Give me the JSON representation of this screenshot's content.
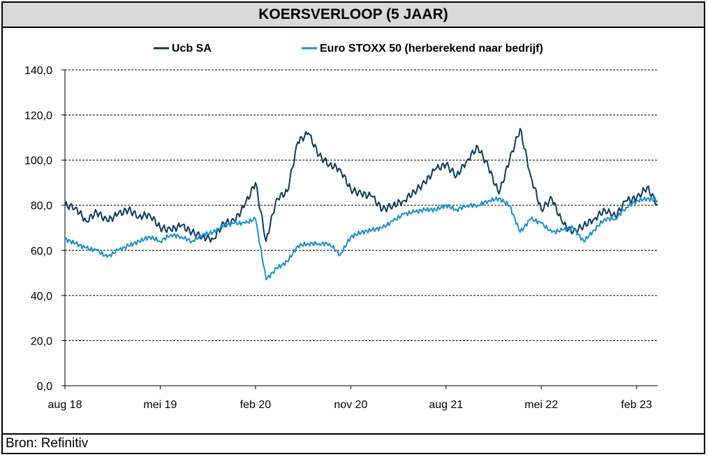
{
  "title": "KOERSVERLOOP (5 JAAR)",
  "source": "Bron: Refinitiv",
  "colors": {
    "ucb": "#0d3a5c",
    "stoxx": "#1e90cc",
    "grid": "#000000"
  },
  "chart_data": {
    "type": "line",
    "title": "KOERSVERLOOP (5 JAAR)",
    "x_range": [
      "aug 18",
      "mrt 23"
    ],
    "xtick_labels": [
      "aug 18",
      "mei 19",
      "feb 20",
      "nov 20",
      "aug 21",
      "mei 22",
      "feb 23"
    ],
    "ylim": [
      0,
      140
    ],
    "yticks": [
      0,
      20,
      40,
      60,
      80,
      100,
      120,
      140
    ],
    "ytick_labels": [
      "0,0",
      "20,0",
      "40,0",
      "60,0",
      "80,0",
      "100,0",
      "120,0",
      "140,0"
    ],
    "grid": "horizontal dashed",
    "legend_position": "top",
    "series": [
      {
        "name": "Ucb SA",
        "color": "#0d3a5c",
        "points": [
          [
            "aug 18",
            80
          ],
          [
            "sep 18",
            79
          ],
          [
            "okt 18",
            73
          ],
          [
            "nov 18",
            77
          ],
          [
            "dec 18",
            73
          ],
          [
            "jan 19",
            76
          ],
          [
            "feb 19",
            78
          ],
          [
            "mrt 19",
            75
          ],
          [
            "apr 19",
            76
          ],
          [
            "mei 19",
            70
          ],
          [
            "jun 19",
            69
          ],
          [
            "jul 19",
            71
          ],
          [
            "aug 19",
            68
          ],
          [
            "sep 19",
            66
          ],
          [
            "okt 19",
            65
          ],
          [
            "nov 19",
            72
          ],
          [
            "dec 19",
            73
          ],
          [
            "jan 20",
            80
          ],
          [
            "feb 20",
            90
          ],
          [
            "mrt 20",
            64
          ],
          [
            "apr 20",
            83
          ],
          [
            "mei 20",
            86
          ],
          [
            "jun 20",
            108
          ],
          [
            "jul 20",
            112
          ],
          [
            "aug 20",
            102
          ],
          [
            "sep 20",
            98
          ],
          [
            "okt 20",
            96
          ],
          [
            "nov 20",
            87
          ],
          [
            "dec 20",
            85
          ],
          [
            "jan 21",
            84
          ],
          [
            "feb 21",
            78
          ],
          [
            "mrt 21",
            80
          ],
          [
            "apr 21",
            82
          ],
          [
            "mei 21",
            86
          ],
          [
            "jun 21",
            90
          ],
          [
            "jul 21",
            96
          ],
          [
            "aug 21",
            98
          ],
          [
            "sep 21",
            93
          ],
          [
            "okt 21",
            100
          ],
          [
            "nov 21",
            106
          ],
          [
            "dec 21",
            97
          ],
          [
            "jan 22",
            85
          ],
          [
            "feb 22",
            100
          ],
          [
            "mrt 22",
            114
          ],
          [
            "apr 22",
            93
          ],
          [
            "mei 22",
            78
          ],
          [
            "jun 22",
            83
          ],
          [
            "jul 22",
            72
          ],
          [
            "aug 22",
            68
          ],
          [
            "sep 22",
            71
          ],
          [
            "okt 22",
            74
          ],
          [
            "nov 22",
            78
          ],
          [
            "dec 22",
            75
          ],
          [
            "jan 23",
            82
          ],
          [
            "feb 23",
            83
          ],
          [
            "mrt 23",
            88
          ],
          [
            "mrt 23 eind",
            80
          ]
        ]
      },
      {
        "name": "Euro STOXX 50 (herberekend naar bedrijf)",
        "color": "#1e90cc",
        "points": [
          [
            "aug 18",
            65
          ],
          [
            "sep 18",
            63
          ],
          [
            "okt 18",
            61
          ],
          [
            "nov 18",
            60
          ],
          [
            "dec 18",
            57
          ],
          [
            "jan 19",
            60
          ],
          [
            "feb 19",
            62
          ],
          [
            "mrt 19",
            64
          ],
          [
            "apr 19",
            66
          ],
          [
            "mei 19",
            64
          ],
          [
            "jun 19",
            67
          ],
          [
            "jul 19",
            66
          ],
          [
            "aug 19",
            64
          ],
          [
            "sep 19",
            67
          ],
          [
            "okt 19",
            68
          ],
          [
            "nov 19",
            71
          ],
          [
            "dec 19",
            72
          ],
          [
            "jan 20",
            72
          ],
          [
            "feb 20",
            74
          ],
          [
            "mrt 20",
            47
          ],
          [
            "apr 20",
            52
          ],
          [
            "mei 20",
            55
          ],
          [
            "jun 20",
            62
          ],
          [
            "jul 20",
            63
          ],
          [
            "aug 20",
            63
          ],
          [
            "sep 20",
            63
          ],
          [
            "okt 20",
            58
          ],
          [
            "nov 20",
            66
          ],
          [
            "dec 20",
            68
          ],
          [
            "jan 21",
            69
          ],
          [
            "feb 21",
            70
          ],
          [
            "mrt 21",
            73
          ],
          [
            "apr 21",
            76
          ],
          [
            "mei 21",
            77
          ],
          [
            "jun 21",
            78
          ],
          [
            "jul 21",
            78
          ],
          [
            "aug 21",
            80
          ],
          [
            "sep 21",
            78
          ],
          [
            "okt 21",
            80
          ],
          [
            "nov 21",
            80
          ],
          [
            "dec 21",
            82
          ],
          [
            "jan 22",
            83
          ],
          [
            "feb 22",
            80
          ],
          [
            "mrt 22",
            68
          ],
          [
            "apr 22",
            74
          ],
          [
            "mei 22",
            72
          ],
          [
            "jun 22",
            68
          ],
          [
            "jul 22",
            69
          ],
          [
            "aug 22",
            70
          ],
          [
            "sep 22",
            64
          ],
          [
            "okt 22",
            69
          ],
          [
            "nov 22",
            74
          ],
          [
            "dec 22",
            74
          ],
          [
            "jan 23",
            79
          ],
          [
            "feb 23",
            82
          ],
          [
            "mrt 23",
            83
          ],
          [
            "mrt 23 eind",
            82
          ]
        ]
      }
    ]
  }
}
